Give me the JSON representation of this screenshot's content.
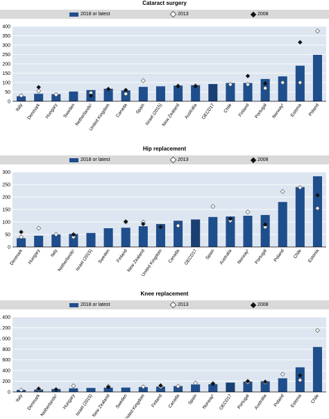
{
  "colors": {
    "bar": "#1f4e8c",
    "plot_background": "#dde6f0",
    "legend_background": "#d9d9d9",
    "marker_2013": "#ffffff",
    "marker_2008": "#111111"
  },
  "legend": {
    "latest": "2018 or latest",
    "y2013": "2013",
    "y2008": "2008"
  },
  "chart_data": [
    {
      "type": "bar",
      "title": "Cataract surgery",
      "ylim": [
        0,
        400
      ],
      "yticks": [
        0,
        50,
        100,
        150,
        200,
        250,
        300,
        350,
        400
      ],
      "ytick_labels": [
        "0",
        "50",
        "100",
        "150",
        "200",
        "250",
        "300",
        "350",
        "400"
      ],
      "categories": [
        "Italy",
        "Denmark",
        "Hungary",
        "Sweden",
        "Netherlands¹",
        "United Kingdom",
        "Canada",
        "Spain",
        "Israel (2015)",
        "New Zealand",
        "Australia",
        "OECD17",
        "Chile",
        "Finland",
        "Portugal",
        "Norway¹",
        "Estonia",
        "Poland"
      ],
      "highlight": "OECD17",
      "series": [
        {
          "name": "2018 or latest",
          "kind": "bar",
          "values": [
            27,
            40,
            38,
            52,
            60,
            67,
            58,
            77,
            80,
            84,
            86,
            92,
            98,
            98,
            119,
            133,
            190,
            248
          ]
        },
        {
          "name": "2013",
          "kind": "open-diamond",
          "values": [
            30,
            55,
            35,
            null,
            45,
            65,
            40,
            110,
            null,
            82,
            83,
            null,
            90,
            90,
            70,
            100,
            100,
            375
          ]
        },
        {
          "name": "2008",
          "kind": "filled-diamond",
          "values": [
            null,
            75,
            null,
            null,
            30,
            65,
            60,
            null,
            null,
            80,
            80,
            null,
            null,
            135,
            95,
            null,
            315,
            null
          ]
        }
      ]
    },
    {
      "type": "bar",
      "title": "Hip replacement",
      "ylim": [
        0,
        300
      ],
      "yticks": [
        0,
        50,
        100,
        150,
        200,
        250,
        300
      ],
      "ytick_labels": [
        "0",
        "50",
        "100",
        "150",
        "200",
        "250",
        "300"
      ],
      "categories": [
        "Denmark",
        "Hungary",
        "Italy",
        "Netherlands¹",
        "Israel (2015)",
        "Sweden",
        "Finland",
        "New Zealand",
        "United Kingdom",
        "Canada",
        "OECD17",
        "Spain",
        "Australia",
        "Norway¹",
        "Portugal",
        "Poland",
        "Chile",
        "Estonia"
      ],
      "highlight": "OECD17",
      "series": [
        {
          "name": "2018 or latest",
          "kind": "bar",
          "values": [
            35,
            45,
            50,
            52,
            56,
            75,
            77,
            83,
            92,
            105,
            110,
            120,
            122,
            125,
            128,
            180,
            240,
            283
          ]
        },
        {
          "name": "2013",
          "kind": "open-diamond",
          "values": [
            40,
            75,
            50,
            40,
            null,
            null,
            100,
            100,
            null,
            85,
            null,
            162,
            105,
            140,
            80,
            222,
            238,
            155
          ]
        },
        {
          "name": "2008",
          "kind": "filled-diamond",
          "values": [
            60,
            null,
            null,
            50,
            null,
            null,
            102,
            92,
            80,
            null,
            null,
            null,
            113,
            null,
            90,
            null,
            null,
            207
          ]
        }
      ]
    },
    {
      "type": "bar",
      "title": "Knee replacement",
      "ylim": [
        0,
        1400
      ],
      "yticks": [
        0,
        200,
        400,
        600,
        800,
        1000,
        1200,
        1400
      ],
      "ytick_labels": [
        "0",
        "200",
        "400",
        "600",
        "800",
        "1 000",
        "1 200",
        "1 400"
      ],
      "categories": [
        "Italy",
        "Denmark",
        "Netherlands¹",
        "Hungary",
        "Israel (2015)",
        "New Zealand",
        "Sweden",
        "United Kingdom",
        "Finland",
        "Canada",
        "Spain",
        "Norway¹",
        "OECD17",
        "Portugal",
        "Australia",
        "Poland",
        "Estonia",
        "Chile"
      ],
      "highlight": "OECD17",
      "series": [
        {
          "name": "2018 or latest",
          "kind": "bar",
          "values": [
            38,
            45,
            55,
            68,
            75,
            80,
            82,
            90,
            100,
            110,
            140,
            145,
            175,
            195,
            200,
            255,
            460,
            840
          ]
        },
        {
          "name": "2013",
          "kind": "open-diamond",
          "values": [
            35,
            45,
            45,
            115,
            null,
            105,
            null,
            95,
            95,
            105,
            165,
            160,
            null,
            180,
            175,
            330,
            220,
            1150
          ]
        },
        {
          "name": "2008",
          "kind": "filled-diamond",
          "values": [
            null,
            60,
            45,
            null,
            null,
            90,
            null,
            null,
            120,
            null,
            null,
            150,
            null,
            200,
            190,
            null,
            310,
            null
          ]
        }
      ]
    }
  ]
}
